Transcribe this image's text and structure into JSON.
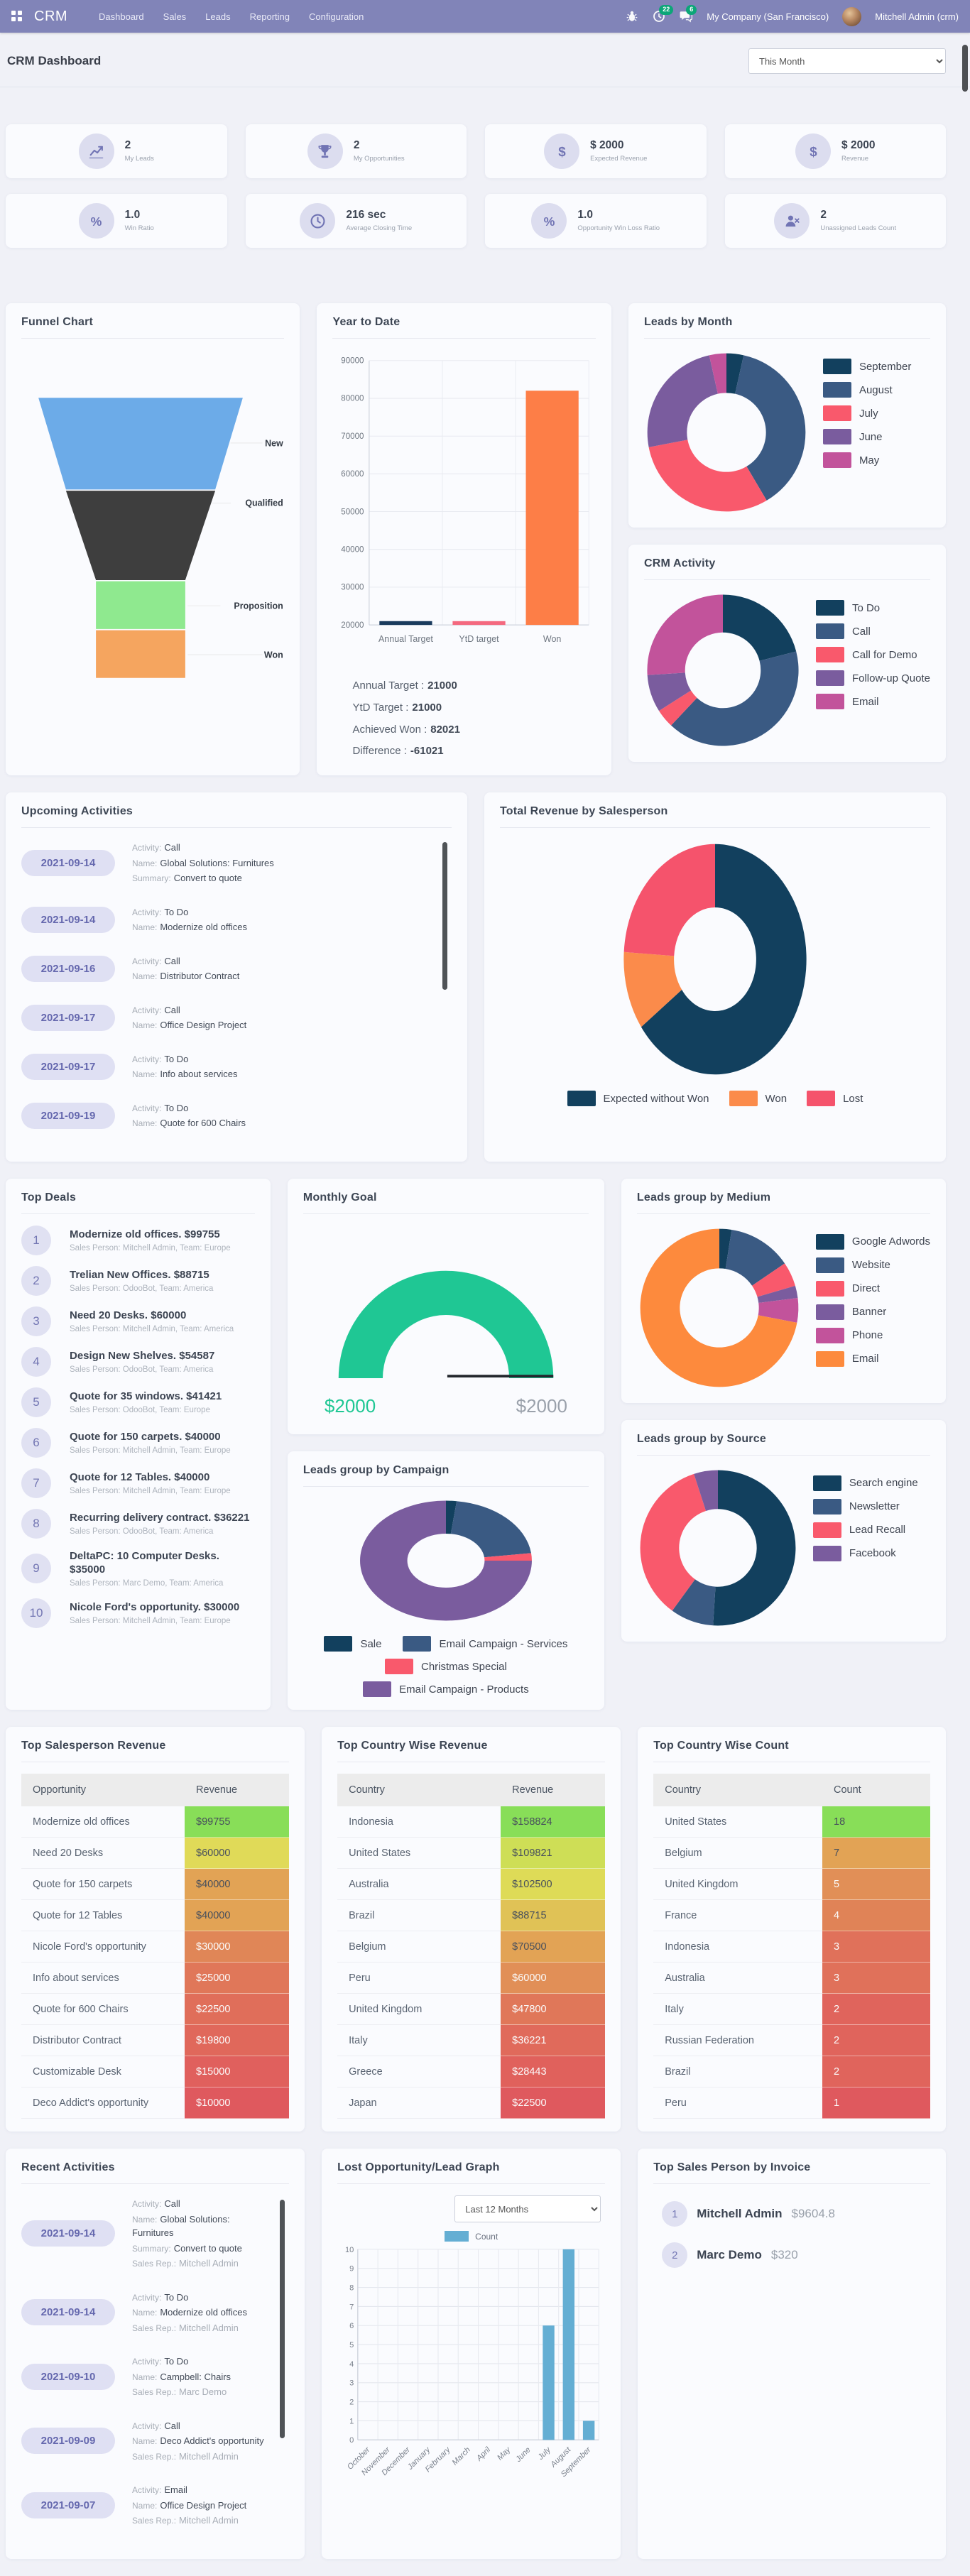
{
  "header": {
    "brand": "CRM",
    "menu": [
      "Dashboard",
      "Sales",
      "Leads",
      "Reporting",
      "Configuration"
    ],
    "activity_count": "22",
    "message_count": "6",
    "company": "My Company (San Francisco)",
    "user": "Mitchell Admin (crm)"
  },
  "page": {
    "title": "CRM Dashboard",
    "period": "This Month"
  },
  "kpis": [
    {
      "icon": "chart-line-icon",
      "value": "2",
      "label": "My Leads"
    },
    {
      "icon": "trophy-icon",
      "value": "2",
      "label": "My Opportunities"
    },
    {
      "icon": "dollar-icon",
      "value": "$ 2000",
      "label": "Expected Revenue"
    },
    {
      "icon": "dollar-icon",
      "value": "$ 2000",
      "label": "Revenue"
    },
    {
      "icon": "percent-icon",
      "value": "1.0",
      "label": "Win Ratio"
    },
    {
      "icon": "clock-icon",
      "value": "216 sec",
      "label": "Average Closing Time"
    },
    {
      "icon": "percent-icon",
      "value": "1.0",
      "label": "Opportunity Win Loss Ratio"
    },
    {
      "icon": "user-x-icon",
      "value": "2",
      "label": "Unassigned Leads Count"
    }
  ],
  "funnel": {
    "title": "Funnel Chart",
    "stages": [
      {
        "label": "New",
        "color": "#6cabe8"
      },
      {
        "label": "Qualified",
        "color": "#3e3e3e"
      },
      {
        "label": "Proposition",
        "color": "#8fe98f"
      },
      {
        "label": "Won",
        "color": "#f5a55f"
      }
    ]
  },
  "year_to_date": {
    "title": "Year to Date",
    "chart": {
      "type": "bar",
      "categories": [
        "Annual Target",
        "YtD target",
        "Won"
      ],
      "values": [
        21000,
        21000,
        82021
      ],
      "colors": [
        "#1a3b5d",
        "#f4697f",
        "#fd7e47"
      ],
      "ymin": 20000,
      "ymax": 90000,
      "ystep": 10000
    },
    "summary": [
      {
        "label": "Annual Target :",
        "value": "21000"
      },
      {
        "label": "YtD Target :",
        "value": "21000"
      },
      {
        "label": "Achieved Won :",
        "value": "82021"
      },
      {
        "label": "Difference :",
        "value": "-61021"
      }
    ]
  },
  "leads_by_month": {
    "title": "Leads by Month",
    "chart": {
      "type": "donut",
      "labels": [
        "September",
        "August",
        "July",
        "June",
        "May"
      ],
      "values": [
        3.5,
        38,
        30.5,
        24.5,
        3.5
      ],
      "colors": [
        "#12405e",
        "#3a5a83",
        "#f9596c",
        "#7a5c9e",
        "#c2539b"
      ],
      "hole": 0.5
    }
  },
  "crm_activity": {
    "title": "CRM Activity",
    "chart": {
      "type": "donut",
      "labels": [
        "To Do",
        "Call",
        "Call for Demo",
        "Follow-up Quote",
        "Email"
      ],
      "values": [
        21,
        41,
        4,
        8,
        26
      ],
      "colors": [
        "#12405e",
        "#3a5a83",
        "#f9596c",
        "#7a5c9e",
        "#c2539b"
      ],
      "hole": 0.5
    }
  },
  "upcoming_activities": {
    "title": "Upcoming Activities",
    "items": [
      {
        "date": "2021-09-14",
        "fields": [
          {
            "label": "Activity:",
            "value": "Call",
            "muted": false
          },
          {
            "label": "Name:",
            "value": "Global Solutions: Furnitures",
            "muted": false
          },
          {
            "label": "Summary:",
            "value": "Convert to quote",
            "muted": false
          }
        ]
      },
      {
        "date": "2021-09-14",
        "fields": [
          {
            "label": "Activity:",
            "value": "To Do",
            "muted": false
          },
          {
            "label": "Name:",
            "value": "Modernize old offices",
            "muted": false
          }
        ]
      },
      {
        "date": "2021-09-16",
        "fields": [
          {
            "label": "Activity:",
            "value": "Call",
            "muted": false
          },
          {
            "label": "Name:",
            "value": "Distributor Contract",
            "muted": false
          }
        ]
      },
      {
        "date": "2021-09-17",
        "fields": [
          {
            "label": "Activity:",
            "value": "Call",
            "muted": false
          },
          {
            "label": "Name:",
            "value": "Office Design Project",
            "muted": false
          }
        ]
      },
      {
        "date": "2021-09-17",
        "fields": [
          {
            "label": "Activity:",
            "value": "To Do",
            "muted": false
          },
          {
            "label": "Name:",
            "value": "Info about services",
            "muted": false
          }
        ]
      },
      {
        "date": "2021-09-19",
        "fields": [
          {
            "label": "Activity:",
            "value": "To Do",
            "muted": false
          },
          {
            "label": "Name:",
            "value": "Quote for 600 Chairs",
            "muted": false
          }
        ]
      }
    ]
  },
  "total_revenue_by_salesperson": {
    "title": "Total Revenue by Salesperson",
    "chart": {
      "type": "donut",
      "labels": [
        "Expected without Won",
        "Won",
        "Lost"
      ],
      "values": [
        65,
        11,
        24
      ],
      "colors": [
        "#12405e",
        "#fb8b4b",
        "#f5536c"
      ],
      "hole": 0.45
    }
  },
  "top_deals": {
    "title": "Top Deals",
    "items": [
      {
        "rank": "1",
        "title": "Modernize old offices. $99755",
        "sub": "Sales Person: Mitchell Admin,  Team: Europe"
      },
      {
        "rank": "2",
        "title": "Trelian New Offices. $88715",
        "sub": "Sales Person: OdooBot,  Team: America"
      },
      {
        "rank": "3",
        "title": "Need 20 Desks. $60000",
        "sub": "Sales Person: Mitchell Admin,  Team: America"
      },
      {
        "rank": "4",
        "title": "Design New Shelves. $54587",
        "sub": "Sales Person: OdooBot,  Team: America"
      },
      {
        "rank": "5",
        "title": "Quote for 35 windows. $41421",
        "sub": "Sales Person: OdooBot,  Team: Europe"
      },
      {
        "rank": "6",
        "title": "Quote for 150 carpets. $40000",
        "sub": "Sales Person: Mitchell Admin,  Team: Europe"
      },
      {
        "rank": "7",
        "title": "Quote for 12 Tables. $40000",
        "sub": "Sales Person: Mitchell Admin,  Team: Europe"
      },
      {
        "rank": "8",
        "title": "Recurring delivery contract. $36221",
        "sub": "Sales Person: OdooBot,  Team: America"
      },
      {
        "rank": "9",
        "title": "DeltaPC: 10 Computer Desks. $35000",
        "sub": "Sales Person: Marc Demo,  Team: America"
      },
      {
        "rank": "10",
        "title": "Nicole Ford's opportunity. $30000",
        "sub": "Sales Person: Mitchell Admin,  Team: Europe"
      }
    ]
  },
  "monthly_goal": {
    "title": "Monthly Goal",
    "achieved_label": "$2000",
    "target_label": "$2000",
    "color": "#1fc794"
  },
  "leads_by_campaign": {
    "title": "Leads group by Campaign",
    "chart": {
      "type": "donut",
      "labels": [
        "Sale",
        "Email Campaign - Services",
        "Christmas Special",
        "Email Campaign - Products"
      ],
      "values": [
        2,
        21,
        2,
        75
      ],
      "colors": [
        "#12405e",
        "#3a5a83",
        "#f9596c",
        "#7a5c9e"
      ],
      "hole": 0.45
    }
  },
  "leads_by_medium": {
    "title": "Leads group by Medium",
    "chart": {
      "type": "donut",
      "labels": [
        "Google Adwords",
        "Website",
        "Direct",
        "Banner",
        "Phone",
        "Email"
      ],
      "values": [
        2.5,
        13,
        5,
        2.5,
        5,
        72
      ],
      "colors": [
        "#12405e",
        "#3a5a83",
        "#f9596c",
        "#7a5c9e",
        "#c2539b",
        "#fd8a3d"
      ],
      "hole": 0.5
    }
  },
  "leads_by_source": {
    "title": "Leads group by Source",
    "chart": {
      "type": "donut",
      "labels": [
        "Search engine",
        "Newsletter",
        "Lead Recall",
        "Facebook"
      ],
      "values": [
        51,
        9,
        35,
        5
      ],
      "colors": [
        "#12405e",
        "#3a5a83",
        "#f9596c",
        "#7a5c9e"
      ],
      "hole": 0.5
    }
  },
  "tables": {
    "salesperson_revenue": {
      "title": "Top Salesperson Revenue",
      "columns": [
        "Opportunity",
        "Revenue"
      ],
      "rows": [
        {
          "name": "Modernize old offices",
          "value": "$99755",
          "color": "#88de58",
          "text": "dark"
        },
        {
          "name": "Need 20 Desks",
          "value": "$60000",
          "color": "#e0da58",
          "text": "dark"
        },
        {
          "name": "Quote for 150 carpets",
          "value": "$40000",
          "color": "#e2a355",
          "text": "dark"
        },
        {
          "name": "Quote for 12 Tables",
          "value": "$40000",
          "color": "#e2a355",
          "text": "dark"
        },
        {
          "name": "Nicole Ford's opportunity",
          "value": "$30000",
          "color": "#e08657",
          "text": "light"
        },
        {
          "name": "Info about services",
          "value": "$25000",
          "color": "#e07759",
          "text": "light"
        },
        {
          "name": "Quote for 600 Chairs",
          "value": "$22500",
          "color": "#e06e5a",
          "text": "light"
        },
        {
          "name": "Distributor Contract",
          "value": "$19800",
          "color": "#e0685b",
          "text": "light"
        },
        {
          "name": "Customizable Desk",
          "value": "$15000",
          "color": "#e0605d",
          "text": "light"
        },
        {
          "name": "Deco Addict's opportunity",
          "value": "$10000",
          "color": "#df595e",
          "text": "light"
        }
      ]
    },
    "country_revenue": {
      "title": "Top Country Wise Revenue",
      "columns": [
        "Country",
        "Revenue"
      ],
      "rows": [
        {
          "name": "Indonesia",
          "value": "$158824",
          "color": "#88de58",
          "text": "dark"
        },
        {
          "name": "United States",
          "value": "$109821",
          "color": "#cede56",
          "text": "dark"
        },
        {
          "name": "Australia",
          "value": "$102500",
          "color": "#dedb57",
          "text": "dark"
        },
        {
          "name": "Brazil",
          "value": "$88715",
          "color": "#e0c256",
          "text": "dark"
        },
        {
          "name": "Belgium",
          "value": "$70500",
          "color": "#e2a355",
          "text": "dark"
        },
        {
          "name": "Peru",
          "value": "$60000",
          "color": "#e18f57",
          "text": "light"
        },
        {
          "name": "United Kingdom",
          "value": "$47800",
          "color": "#e07759",
          "text": "light"
        },
        {
          "name": "Italy",
          "value": "$36221",
          "color": "#e06a5b",
          "text": "light"
        },
        {
          "name": "Greece",
          "value": "$28443",
          "color": "#e0615c",
          "text": "light"
        },
        {
          "name": "Japan",
          "value": "$22500",
          "color": "#df595e",
          "text": "light"
        }
      ]
    },
    "country_count": {
      "title": "Top Country Wise Count",
      "columns": [
        "Country",
        "Count"
      ],
      "rows": [
        {
          "name": "United States",
          "value": "18",
          "color": "#88de58",
          "text": "dark"
        },
        {
          "name": "Belgium",
          "value": "7",
          "color": "#e2a355",
          "text": "dark"
        },
        {
          "name": "United Kingdom",
          "value": "5",
          "color": "#e18f57",
          "text": "light"
        },
        {
          "name": "France",
          "value": "4",
          "color": "#e08357",
          "text": "light"
        },
        {
          "name": "Indonesia",
          "value": "3",
          "color": "#e0715a",
          "text": "light"
        },
        {
          "name": "Australia",
          "value": "3",
          "color": "#e0715a",
          "text": "light"
        },
        {
          "name": "Italy",
          "value": "2",
          "color": "#e0645c",
          "text": "light"
        },
        {
          "name": "Russian Federation",
          "value": "2",
          "color": "#e0645c",
          "text": "light"
        },
        {
          "name": "Brazil",
          "value": "2",
          "color": "#e0645c",
          "text": "light"
        },
        {
          "name": "Peru",
          "value": "1",
          "color": "#df595e",
          "text": "light"
        }
      ]
    }
  },
  "recent_activities": {
    "title": "Recent Activities",
    "items": [
      {
        "date": "2021-09-14",
        "fields": [
          {
            "label": "Activity:",
            "value": "Call",
            "muted": false
          },
          {
            "label": "Name:",
            "value": "Global Solutions: Furnitures",
            "muted": false
          },
          {
            "label": "Summary:",
            "value": "Convert to quote",
            "muted": false
          },
          {
            "label": "Sales Rep.:",
            "value": "Mitchell Admin",
            "muted": true
          }
        ]
      },
      {
        "date": "2021-09-14",
        "fields": [
          {
            "label": "Activity:",
            "value": "To Do",
            "muted": false
          },
          {
            "label": "Name:",
            "value": "Modernize old offices",
            "muted": false
          },
          {
            "label": "Sales Rep.:",
            "value": "Mitchell Admin",
            "muted": true
          }
        ]
      },
      {
        "date": "2021-09-10",
        "fields": [
          {
            "label": "Activity:",
            "value": "To Do",
            "muted": false
          },
          {
            "label": "Name:",
            "value": "Campbell: Chairs",
            "muted": false
          },
          {
            "label": "Sales Rep.:",
            "value": "Marc Demo",
            "muted": true
          }
        ]
      },
      {
        "date": "2021-09-09",
        "fields": [
          {
            "label": "Activity:",
            "value": "Call",
            "muted": false
          },
          {
            "label": "Name:",
            "value": "Deco Addict's opportunity",
            "muted": false
          },
          {
            "label": "Sales Rep.:",
            "value": "Mitchell Admin",
            "muted": true
          }
        ]
      },
      {
        "date": "2021-09-07",
        "fields": [
          {
            "label": "Activity:",
            "value": "Email",
            "muted": false
          },
          {
            "label": "Name:",
            "value": "Office Design Project",
            "muted": false
          },
          {
            "label": "Sales Rep.:",
            "value": "Mitchell Admin",
            "muted": true
          }
        ]
      }
    ]
  },
  "lost_graph": {
    "title": "Lost Opportunity/Lead Graph",
    "dropdown": "Last 12 Months",
    "legend": "Count",
    "chart": {
      "type": "bar",
      "categories": [
        "October",
        "November",
        "December",
        "January",
        "February",
        "March",
        "April",
        "May",
        "June",
        "July",
        "August",
        "September"
      ],
      "values": [
        0,
        0,
        0,
        0,
        0,
        0,
        0,
        0,
        0,
        6,
        10,
        1
      ],
      "color": "#64aed3",
      "ymin": 0,
      "ymax": 10,
      "ystep": 1
    }
  },
  "top_invoice": {
    "title": "Top Sales Person by Invoice",
    "items": [
      {
        "rank": "1",
        "name": "Mitchell Admin",
        "amount": "$9604.8"
      },
      {
        "rank": "2",
        "name": "Marc Demo",
        "amount": "$320"
      }
    ]
  }
}
